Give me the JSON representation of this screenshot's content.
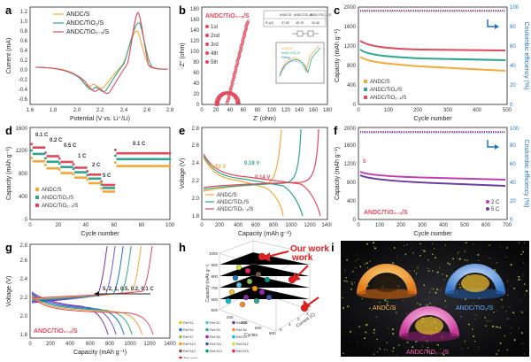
{
  "panels": {
    "a": {
      "letter": "a",
      "xlabel": "Potential (V vs. Li⁺/Li)",
      "ylabel": "Current (mA)",
      "xticks": [
        "1.6",
        "1.8",
        "2.0",
        "2.2",
        "2.4",
        "2.6",
        "2.8"
      ],
      "yticks": [
        "-0.6",
        "-0.4",
        "-0.2",
        "0.0",
        "0.2",
        "0.4",
        "0.6",
        "0.8",
        "1.0",
        "1.2"
      ],
      "legend": [
        "ANDC/S",
        "ANDC/TiO₂/S",
        "ANDC/TiO₂₋ₓ/S"
      ],
      "colors": [
        "#f2a93b",
        "#2fa58d",
        "#e0495c"
      ]
    },
    "b": {
      "letter": "b",
      "xlabel": "Z' (ohm)",
      "ylabel": "-Z'' (ohm)",
      "title": "ANDC/TiO₂₋ₓ/S",
      "xticks": [
        "0",
        "20",
        "40",
        "60",
        "80",
        "100",
        "120",
        "140",
        "160",
        "180"
      ],
      "yticks": [
        "0",
        "20",
        "40",
        "60",
        "80",
        "100",
        "120",
        "140",
        "160",
        "180"
      ],
      "legend": [
        "1st",
        "2nd",
        "3rd",
        "4th",
        "5th"
      ],
      "inset_table": [
        "",
        "ANDC/S",
        "ANDC/TiO₂/S",
        "ANDC/TiO₂₋ₓ/S",
        "R₀(Ω)",
        "37.83",
        "45.78",
        "30.46"
      ],
      "inset_legend": [
        "ANDC/S",
        "ANDC/TiO₂/S",
        "Fitting"
      ]
    },
    "c": {
      "letter": "c",
      "xlabel": "Cycle number",
      "ylabel": "Capacity (mAh g⁻¹)",
      "ylabel2": "Coulombic efficiency (%)",
      "xticks": [
        "0",
        "100",
        "200",
        "300",
        "400",
        "500"
      ],
      "yticks": [
        "0",
        "200",
        "400",
        "600",
        "800",
        "1000",
        "1200",
        "1400",
        "1600",
        "1800",
        "2000"
      ],
      "y2ticks": [
        "0",
        "20",
        "40",
        "60",
        "80",
        "100"
      ],
      "legend": [
        "ANDC/S",
        "ANDC/TiO₂/S",
        "ANDC/TiO₂₋ₓ/S"
      ]
    },
    "d": {
      "letter": "d",
      "xlabel": "Cycle number",
      "ylabel": "Capacity (mAh g⁻¹)",
      "xticks": [
        "0",
        "20",
        "40",
        "60",
        "80",
        "100"
      ],
      "yticks": [
        "0",
        "200",
        "400",
        "600",
        "800",
        "1000",
        "1200",
        "1400",
        "1600"
      ],
      "rates": [
        "0.1 C",
        "0.2 C",
        "0.5 C",
        "1 C",
        "2 C",
        "5 C",
        "0.1 C"
      ],
      "legend": [
        "ANDC/S",
        "ANDC/TiO₂/S",
        "ANDC/TiO₂₋ₓ/S"
      ]
    },
    "e": {
      "letter": "e",
      "xlabel": "Capacity (mAh g⁻¹)",
      "ylabel": "Voltage (V)",
      "xticks": [
        "0",
        "200",
        "400",
        "600",
        "800",
        "1000",
        "1200",
        "1400"
      ],
      "yticks": [
        "1.8",
        "2.0",
        "2.2",
        "2.4",
        "2.6",
        "2.8"
      ],
      "annot": [
        "0.23 V",
        "0.19 V",
        "0.14 V"
      ],
      "legend": [
        "ANDC/S",
        "ANDC/TiO₂/S",
        "ANDC/TiO₂₋ₓ/S"
      ]
    },
    "f": {
      "letter": "f",
      "xlabel": "Cycle number",
      "ylabel": "Capacity (mAh g⁻¹)",
      "ylabel2": "Coulombic efficiency (%)",
      "xticks": [
        "0",
        "100",
        "200",
        "300",
        "400",
        "500",
        "600",
        "700"
      ],
      "yticks": [
        "0",
        "200",
        "400",
        "600",
        "800",
        "1000",
        "1200",
        "1400",
        "1600",
        "1800",
        "2000"
      ],
      "y2ticks": [
        "0",
        "20",
        "40",
        "60",
        "80",
        "100"
      ],
      "sample": "ANDC/TiO₂₋ₓ/S",
      "legend": [
        "2 C",
        "5 C"
      ],
      "marker": "5"
    },
    "g": {
      "letter": "g",
      "xlabel": "Capacity (mAh g⁻¹)",
      "ylabel": "Voltage (V)",
      "xticks": [
        "0",
        "200",
        "400",
        "600",
        "800",
        "1000",
        "1200",
        "1400"
      ],
      "yticks": [
        "1.8",
        "2.0",
        "2.2",
        "2.4",
        "2.6",
        "2.8"
      ],
      "rates_label": "5, 2, 1, 0.5, 0.2, 0.1 C",
      "sample": "ANDC/TiO₂₋ₓ/S"
    },
    "h": {
      "letter": "h",
      "zlabel": "Capacity (mAh g⁻¹)",
      "xlabel": "Cycles",
      "ylabel": "Current (C)",
      "zticks": [
        "500",
        "600",
        "700",
        "800",
        "900",
        "1000"
      ],
      "xticks": [
        "200",
        "400",
        "600",
        "800"
      ],
      "yticks": [
        "0",
        "1",
        "2",
        "3"
      ],
      "callout": "Our work",
      "legend": [
        "Ref.S1",
        "Ref.S2",
        "Ref.S3",
        "Ref.S4",
        "Ref.S5",
        "Ref.S6",
        "Ref.S7",
        "Ref.S8",
        "Ref.S9",
        "Ref.S10",
        "Ref.S11",
        "Ref.S12",
        "Ref.S13",
        "Ref.S14",
        "Ref.S15",
        "This work"
      ]
    },
    "i": {
      "letter": "i",
      "labels": [
        "ANDC/S",
        "ANDC/TiO₂/S",
        "ANDC/TiO₂₋ₓ/S"
      ]
    }
  },
  "colors": {
    "orange": "#f2a93b",
    "teal": "#2fa58d",
    "red": "#e0495c",
    "blue": "#1d73c5",
    "purple": "#6a3fa0"
  }
}
